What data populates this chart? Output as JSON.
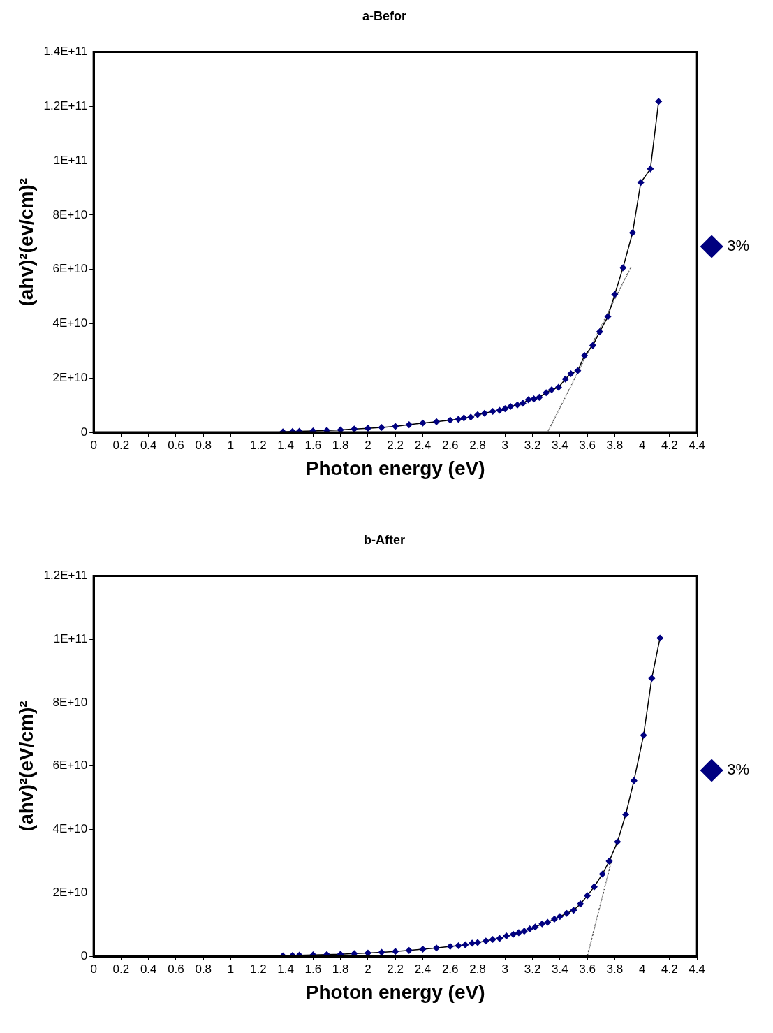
{
  "chart_data": [
    {
      "type": "line",
      "title": "a-Befor",
      "xlabel": "Photon energy (eV)",
      "ylabel": "(ahv)²(ev/cm)²",
      "xlim": [
        0,
        4.4
      ],
      "xticks": [
        0,
        0.2,
        0.4,
        0.6,
        0.8,
        1,
        1.2,
        1.4,
        1.6,
        1.8,
        2,
        2.2,
        2.4,
        2.6,
        2.8,
        3,
        3.2,
        3.4,
        3.6,
        3.8,
        4,
        4.2,
        4.4
      ],
      "ylim": [
        0,
        140000000000.0
      ],
      "yticks": [
        0,
        {
          "value": 20000000000.0,
          "label": "2E+10"
        },
        {
          "value": 40000000000.0,
          "label": "4E+10"
        },
        {
          "value": 60000000000.0,
          "label": "6E+10"
        },
        {
          "value": 80000000000.0,
          "label": "8E+10"
        },
        {
          "value": 100000000000.0,
          "label": "1E+11"
        },
        {
          "value": 120000000000.0,
          "label": "1.2E+11"
        },
        {
          "value": 140000000000.0,
          "label": "1.4E+11"
        }
      ],
      "grid": false,
      "legend": "right",
      "marker": "diamond",
      "series": [
        {
          "name": "3%",
          "color": "#000080",
          "x": [
            1.38,
            1.45,
            1.5,
            1.6,
            1.7,
            1.8,
            1.9,
            2.0,
            2.1,
            2.2,
            2.3,
            2.4,
            2.5,
            2.6,
            2.66,
            2.7,
            2.75,
            2.8,
            2.85,
            2.91,
            2.96,
            3.0,
            3.04,
            3.09,
            3.13,
            3.17,
            3.21,
            3.25,
            3.3,
            3.34,
            3.39,
            3.44,
            3.48,
            3.53,
            3.58,
            3.64,
            3.69,
            3.75,
            3.8,
            3.86,
            3.93,
            3.99,
            4.06,
            4.12
          ],
          "values": [
            200000000.0,
            300000000.0,
            400000000.0,
            500000000.0,
            700000000.0,
            900000000.0,
            1200000000.0,
            1500000000.0,
            1800000000.0,
            2200000000.0,
            2800000000.0,
            3400000000.0,
            3900000000.0,
            4500000000.0,
            4800000000.0,
            5300000000.0,
            5600000000.0,
            6500000000.0,
            7000000000.0,
            7700000000.0,
            8100000000.0,
            8700000000.0,
            9500000000.0,
            10100000000.0,
            10700000000.0,
            12000000000.0,
            12300000000.0,
            12900000000.0,
            14600000000.0,
            15700000000.0,
            16600000000.0,
            19600000000.0,
            21600000000.0,
            22700000000.0,
            28300000000.0,
            32000000000.0,
            37000000000.0,
            42600000000.0,
            50800000000.0,
            60600000000.0,
            73500000000.0,
            92000000000.0,
            97000000000.0,
            121800000000.0
          ]
        },
        {
          "type": "line",
          "color": "#404040",
          "line_style": "dotted",
          "marker": "none",
          "x": [
            3.31,
            3.92
          ],
          "values": [
            0,
            61000000000.0
          ]
        }
      ]
    },
    {
      "type": "line",
      "title": "b-After",
      "xlabel": "Photon energy (eV)",
      "ylabel": "(ahv)²(eV/cm)²",
      "xlim": [
        0,
        4.4
      ],
      "xticks": [
        0,
        0.2,
        0.4,
        0.6,
        0.8,
        1,
        1.2,
        1.4,
        1.6,
        1.8,
        2,
        2.2,
        2.4,
        2.6,
        2.8,
        3,
        3.2,
        3.4,
        3.6,
        3.8,
        4,
        4.2,
        4.4
      ],
      "ylim": [
        0,
        120000000000.0
      ],
      "yticks": [
        0,
        {
          "value": 20000000000.0,
          "label": "2E+10"
        },
        {
          "value": 40000000000.0,
          "label": "4E+10"
        },
        {
          "value": 60000000000.0,
          "label": "6E+10"
        },
        {
          "value": 80000000000.0,
          "label": "8E+10"
        },
        {
          "value": 100000000000.0,
          "label": "1E+11"
        },
        {
          "value": 120000000000.0,
          "label": "1.2E+11"
        }
      ],
      "grid": false,
      "legend": "right",
      "marker": "diamond",
      "series": [
        {
          "name": "3%",
          "color": "#000080",
          "x": [
            1.38,
            1.45,
            1.5,
            1.6,
            1.7,
            1.8,
            1.9,
            2.0,
            2.1,
            2.2,
            2.3,
            2.4,
            2.5,
            2.6,
            2.66,
            2.71,
            2.76,
            2.8,
            2.86,
            2.91,
            2.96,
            3.01,
            3.06,
            3.1,
            3.14,
            3.18,
            3.22,
            3.27,
            3.31,
            3.36,
            3.4,
            3.45,
            3.5,
            3.55,
            3.6,
            3.65,
            3.71,
            3.76,
            3.82,
            3.88,
            3.94,
            4.01,
            4.07,
            4.13
          ],
          "values": [
            100000000.0,
            200000000.0,
            300000000.0,
            400000000.0,
            500000000.0,
            600000000.0,
            800000000.0,
            1000000000.0,
            1200000000.0,
            1500000000.0,
            1800000000.0,
            2200000000.0,
            2600000000.0,
            3100000000.0,
            3300000000.0,
            3600000000.0,
            4100000000.0,
            4300000000.0,
            4800000000.0,
            5300000000.0,
            5600000000.0,
            6400000000.0,
            6900000000.0,
            7400000000.0,
            7900000000.0,
            8600000000.0,
            9200000000.0,
            10200000000.0,
            10700000000.0,
            11700000000.0,
            12500000000.0,
            13500000000.0,
            14500000000.0,
            16500000000.0,
            19100000000.0,
            21900000000.0,
            25900000000.0,
            30000000000.0,
            36100000000.0,
            44700000000.0,
            55400000000.0,
            69700000000.0,
            87700000000.0,
            100400000000.0
          ]
        },
        {
          "type": "line",
          "color": "#404040",
          "line_style": "dotted",
          "marker": "none",
          "x": [
            3.6,
            3.78
          ],
          "values": [
            0,
            30800000000.0
          ]
        }
      ]
    }
  ]
}
